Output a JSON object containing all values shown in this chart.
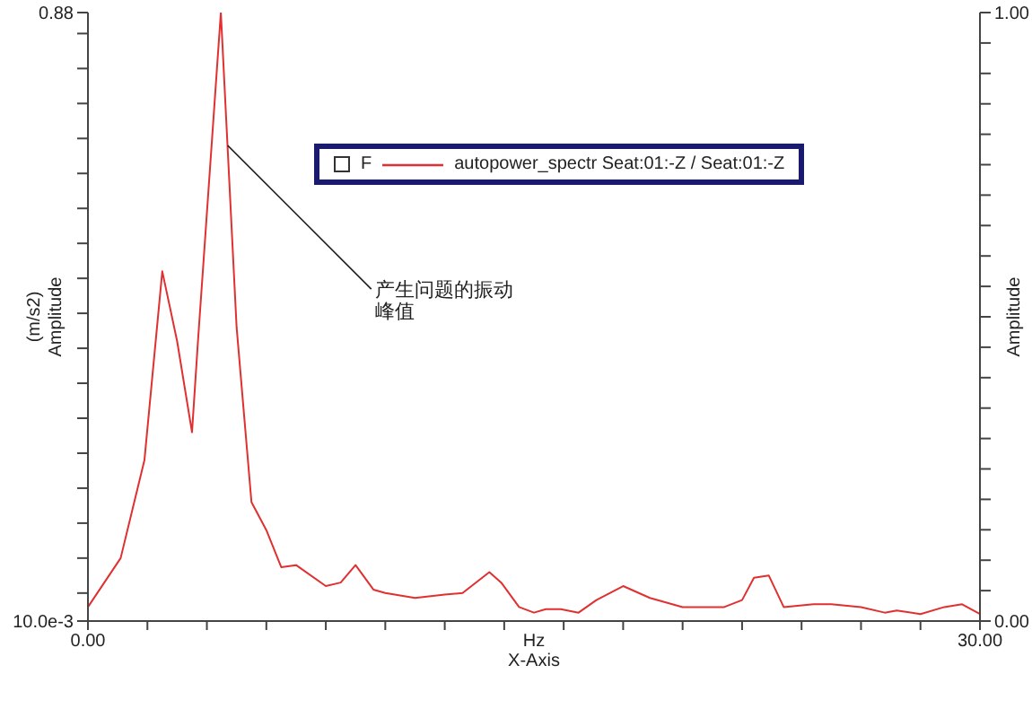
{
  "chart_data": {
    "type": "line",
    "xlabel": "Hz\nX-Axis",
    "ylabel": "(m/s2)\nAmplitude",
    "y2label": "Amplitude",
    "legend_title": "F",
    "x": [
      0,
      1.1,
      1.5,
      1.9,
      2.5,
      3.0,
      3.5,
      3.7,
      4.47,
      5.0,
      5.5,
      6.0,
      6.5,
      7.0,
      8.0,
      8.5,
      9.0,
      9.6,
      10.0,
      11.0,
      12.0,
      12.6,
      13.5,
      13.9,
      14.5,
      15.0,
      15.4,
      15.9,
      16.5,
      17.1,
      18.0,
      18.9,
      20.0,
      21.4,
      22.0,
      22.4,
      22.9,
      23.4,
      24.4,
      25.0,
      26.0,
      26.8,
      27.2,
      28.0,
      28.8,
      29.4,
      30.0
    ],
    "series": [
      {
        "name": "autopower_spectr Seat:01:-Z / Seat:01:-Z",
        "color": "#e03030",
        "values": [
          0.03,
          0.1,
          0.17,
          0.24,
          0.51,
          0.41,
          0.28,
          0.41,
          0.88,
          0.43,
          0.18,
          0.14,
          0.087,
          0.09,
          0.06,
          0.065,
          0.09,
          0.055,
          0.05,
          0.043,
          0.048,
          0.05,
          0.08,
          0.065,
          0.03,
          0.022,
          0.027,
          0.027,
          0.022,
          0.04,
          0.06,
          0.043,
          0.03,
          0.03,
          0.04,
          0.072,
          0.075,
          0.03,
          0.034,
          0.034,
          0.03,
          0.022,
          0.025,
          0.02,
          0.03,
          0.034,
          0.02
        ]
      }
    ],
    "xlim": [
      0,
      30
    ],
    "xticks": [
      {
        "value": 0,
        "label": "0.00"
      },
      {
        "value": 2,
        "label": null
      },
      {
        "value": 4,
        "label": null
      },
      {
        "value": 6,
        "label": null
      },
      {
        "value": 8,
        "label": null
      },
      {
        "value": 10,
        "label": null
      },
      {
        "value": 12,
        "label": null
      },
      {
        "value": 14,
        "label": null
      },
      {
        "value": 16,
        "label": null
      },
      {
        "value": 18,
        "label": null
      },
      {
        "value": 20,
        "label": null
      },
      {
        "value": 22,
        "label": null
      },
      {
        "value": 24,
        "label": null
      },
      {
        "value": 26,
        "label": null
      },
      {
        "value": 28,
        "label": null
      },
      {
        "value": 30,
        "label": "30.00"
      }
    ],
    "ylim": [
      0.01,
      0.88
    ],
    "yticks": [
      {
        "value": 0.01,
        "label": "10.0e-3"
      },
      {
        "value": 0.05,
        "label": null
      },
      {
        "value": 0.1,
        "label": null
      },
      {
        "value": 0.15,
        "label": null
      },
      {
        "value": 0.2,
        "label": null
      },
      {
        "value": 0.25,
        "label": null
      },
      {
        "value": 0.3,
        "label": null
      },
      {
        "value": 0.35,
        "label": null
      },
      {
        "value": 0.4,
        "label": null
      },
      {
        "value": 0.45,
        "label": null
      },
      {
        "value": 0.5,
        "label": null
      },
      {
        "value": 0.55,
        "label": null
      },
      {
        "value": 0.6,
        "label": null
      },
      {
        "value": 0.65,
        "label": null
      },
      {
        "value": 0.7,
        "label": null
      },
      {
        "value": 0.75,
        "label": null
      },
      {
        "value": 0.8,
        "label": null
      },
      {
        "value": 0.85,
        "label": null
      },
      {
        "value": 0.88,
        "label": "0.88"
      }
    ],
    "y2lim": [
      0,
      1
    ],
    "y2ticks": [
      {
        "value": 0,
        "label": "0.00"
      },
      {
        "value": 0.05,
        "label": null
      },
      {
        "value": 0.1,
        "label": null
      },
      {
        "value": 0.15,
        "label": null
      },
      {
        "value": 0.2,
        "label": null
      },
      {
        "value": 0.25,
        "label": null
      },
      {
        "value": 0.3,
        "label": null
      },
      {
        "value": 0.35,
        "label": null
      },
      {
        "value": 0.4,
        "label": null
      },
      {
        "value": 0.45,
        "label": null
      },
      {
        "value": 0.5,
        "label": null
      },
      {
        "value": 0.55,
        "label": null
      },
      {
        "value": 0.6,
        "label": null
      },
      {
        "value": 0.65,
        "label": null
      },
      {
        "value": 0.7,
        "label": null
      },
      {
        "value": 0.75,
        "label": null
      },
      {
        "value": 0.8,
        "label": null
      },
      {
        "value": 0.85,
        "label": null
      },
      {
        "value": 0.9,
        "label": null
      },
      {
        "value": 0.95,
        "label": null
      },
      {
        "value": 1,
        "label": "1.00"
      }
    ],
    "annotations": [
      {
        "text": "产生问题的振动峰值",
        "x": 4.7,
        "y": 0.69
      }
    ],
    "grid": false,
    "legend": "top right",
    "marker": "none",
    "line_style": "solid"
  }
}
